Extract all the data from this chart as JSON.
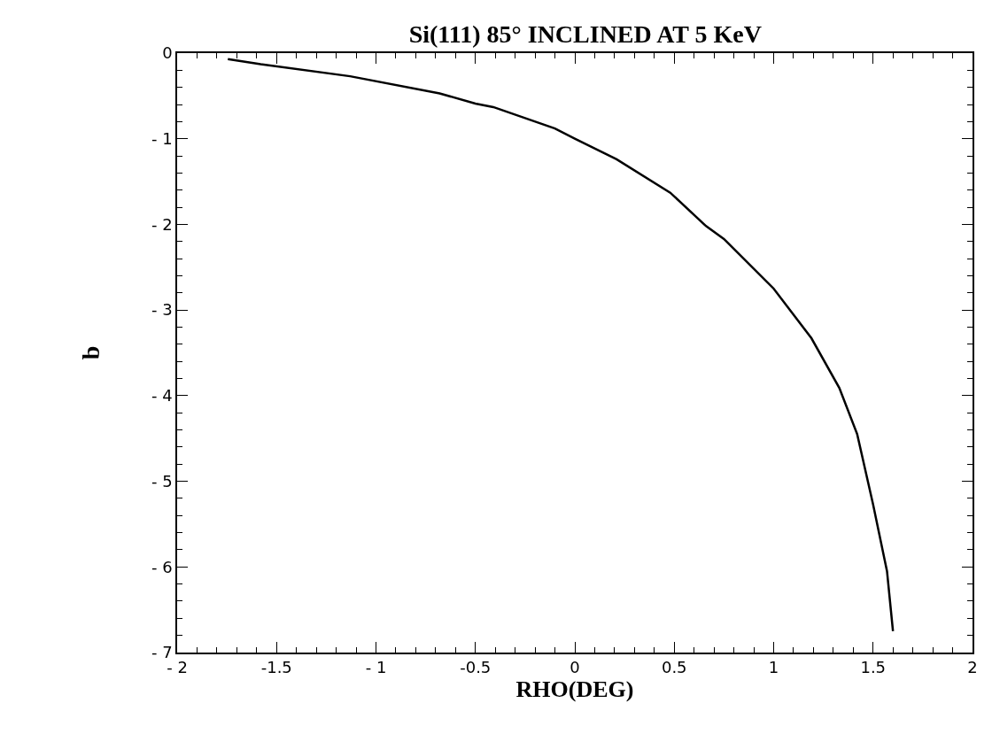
{
  "chart_data": {
    "type": "line",
    "title": "Si(111) 85° INCLINED AT 5 KeV",
    "xlabel": "RHO(DEG)",
    "ylabel": "b",
    "x": [
      -1.745,
      -1.58,
      -1.13,
      -0.68,
      -0.5,
      -0.41,
      -0.1,
      0,
      0.21,
      0.48,
      0.66,
      0.75,
      1,
      1.19,
      1.33,
      1.42,
      1.5,
      1.57,
      1.6
    ],
    "series": [
      {
        "color": "#000000",
        "values": [
          -0.07,
          -0.13,
          -0.27,
          -0.47,
          -0.59,
          -0.63,
          -0.88,
          -1.0,
          -1.24,
          -1.63,
          -2.02,
          -2.17,
          -2.75,
          -3.33,
          -3.91,
          -4.45,
          -5.27,
          -6.05,
          -6.75
        ]
      }
    ],
    "xlim": [
      -2,
      2
    ],
    "ylim": [
      -7,
      0
    ],
    "xticks": [
      {
        "value": -2,
        "label": "- 2"
      },
      {
        "value": -1.5,
        "label": "-1.5"
      },
      {
        "value": -1,
        "label": "- 1"
      },
      {
        "value": -0.5,
        "label": "-0.5"
      },
      0,
      0.5,
      1,
      1.5,
      2
    ],
    "yticks": [
      {
        "value": -7,
        "label": "- 7"
      },
      {
        "value": -6,
        "label": "- 6"
      },
      {
        "value": -5,
        "label": "- 5"
      },
      {
        "value": -4,
        "label": "- 4"
      },
      {
        "value": -3,
        "label": "- 3"
      },
      {
        "value": -2,
        "label": "- 2"
      },
      {
        "value": -1,
        "label": "- 1"
      },
      0
    ],
    "marker": "none",
    "line_style": "solid"
  }
}
